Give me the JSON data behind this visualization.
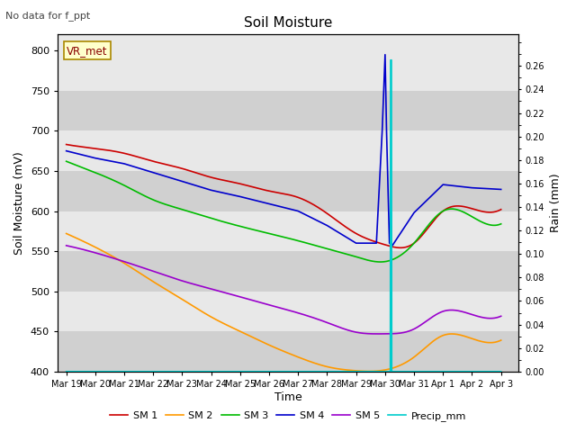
{
  "title": "Soil Moisture",
  "xlabel": "Time",
  "ylabel_left": "Soil Moisture (mV)",
  "ylabel_right": "Rain (mm)",
  "note": "No data for f_ppt",
  "station_label": "VR_met",
  "bg_color_light": "#e8e8e8",
  "bg_color_dark": "#d0d0d0",
  "ylim_left": [
    400,
    820
  ],
  "ylim_right": [
    0.0,
    0.2867
  ],
  "yticks_left": [
    400,
    450,
    500,
    550,
    600,
    650,
    700,
    750,
    800
  ],
  "yticks_right": [
    0.0,
    0.02,
    0.04,
    0.06,
    0.08,
    0.1,
    0.12,
    0.14,
    0.16,
    0.18,
    0.2,
    0.22,
    0.24,
    0.26
  ],
  "xtick_labels": [
    "Mar 19",
    "Mar 20",
    "Mar 21",
    "Mar 22",
    "Mar 23",
    "Mar 24",
    "Mar 25",
    "Mar 26",
    "Mar 27",
    "Mar 28",
    "Mar 29",
    "Mar 30",
    "Mar 31",
    "Apr 1",
    "Apr 2",
    "Apr 3"
  ],
  "colors": {
    "SM1": "#cc0000",
    "SM2": "#ff9900",
    "SM3": "#00bb00",
    "SM4": "#0000cc",
    "SM5": "#9900cc",
    "Precip": "#00cccc"
  },
  "labels": {
    "SM1": "SM 1",
    "SM2": "SM 2",
    "SM3": "SM 3",
    "SM4": "SM 4",
    "SM5": "SM 5",
    "Precip": "Precip_mm"
  },
  "line_width": 1.2,
  "sm1_y": [
    683,
    678,
    672,
    662,
    653,
    642,
    634,
    625,
    617,
    597,
    572,
    558,
    560,
    600,
    603,
    602
  ],
  "sm2_y": [
    572,
    555,
    535,
    512,
    490,
    468,
    450,
    433,
    418,
    406,
    401,
    402,
    418,
    445,
    441,
    439
  ],
  "sm3_y": [
    662,
    648,
    632,
    614,
    602,
    591,
    581,
    572,
    563,
    553,
    543,
    537,
    560,
    600,
    593,
    584
  ],
  "sm4_y_x": [
    0,
    1,
    2,
    3,
    4,
    5,
    6,
    7,
    8,
    9,
    10,
    10.7,
    10.9,
    11.0,
    11.05,
    11.15,
    11.25,
    12,
    13,
    14,
    15
  ],
  "sm4_y": [
    675,
    666,
    659,
    648,
    637,
    626,
    618,
    609,
    600,
    582,
    560,
    560,
    700,
    795,
    700,
    560,
    557,
    598,
    633,
    629,
    627
  ],
  "sm5_y": [
    557,
    548,
    537,
    525,
    513,
    503,
    493,
    483,
    473,
    461,
    449,
    447,
    453,
    475,
    471,
    469
  ],
  "precip_x": [
    0,
    11.18,
    11.19,
    11.22,
    11.23,
    15
  ],
  "precip_y": [
    0,
    0,
    0.265,
    0.265,
    0,
    0
  ]
}
